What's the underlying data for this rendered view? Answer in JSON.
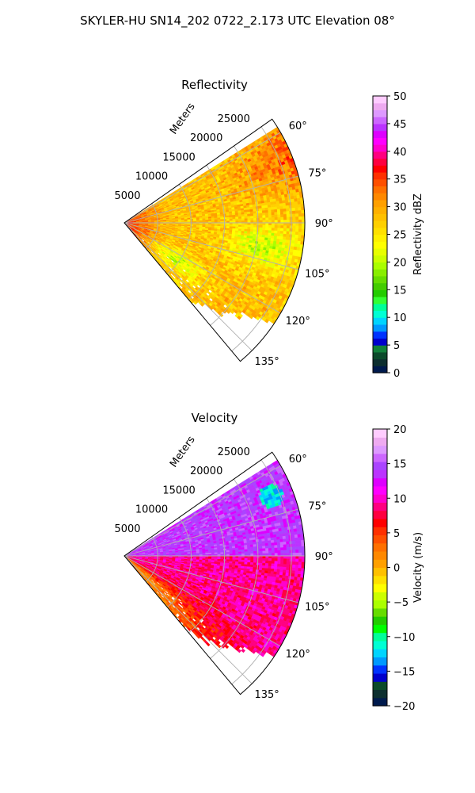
{
  "figure": {
    "suptitle": "SKYLER-HU  SN14_202  0722_2.173 UTC Elevation 08°"
  },
  "chart_data": [
    {
      "type": "heatmap",
      "projection": "polar-sector",
      "title": "Reflectivity",
      "range_label": "Meters",
      "range_ticks": [
        5000,
        10000,
        15000,
        20000,
        25000
      ],
      "range_tick_labels": [
        "5000",
        "10000",
        "15000",
        "20000",
        "25000"
      ],
      "azimuth_range_deg": [
        55,
        140
      ],
      "azimuth_ticks": [
        60,
        75,
        90,
        105,
        120,
        135
      ],
      "azimuth_tick_labels": [
        "60°",
        "75°",
        "90°",
        "105°",
        "120°",
        "135°"
      ],
      "grid": true,
      "colorbar": {
        "label": "Reflectivity dBZ",
        "vmin": 0,
        "vmax": 50,
        "ticks": [
          0,
          5,
          10,
          15,
          20,
          25,
          30,
          35,
          40,
          45,
          50
        ],
        "tick_labels": [
          "0",
          "5",
          "10",
          "15",
          "20",
          "25",
          "30",
          "35",
          "40",
          "45",
          "50"
        ],
        "colors": [
          "#001a4d",
          "#0d2f2f",
          "#0b4a2a",
          "#12803a",
          "#0000cc",
          "#0033ff",
          "#0099ff",
          "#00d4ff",
          "#00ffd4",
          "#00ff99",
          "#33ff33",
          "#22cc00",
          "#44cc00",
          "#66dd00",
          "#88ee00",
          "#aaff00",
          "#ccff00",
          "#e8ff00",
          "#ffff00",
          "#fff000",
          "#ffe000",
          "#ffd000",
          "#ffc000",
          "#ffb000",
          "#ffa000",
          "#ff8800",
          "#ff7000",
          "#ff5000",
          "#ff3000",
          "#ff0000",
          "#ff0040",
          "#ff0080",
          "#ff00cc",
          "#ff00ff",
          "#dd00ff",
          "#bb33ff",
          "#cc66ff",
          "#dd99ff",
          "#eeaaf0",
          "#ffccff"
        ]
      },
      "field_description_values": {
        "near_radar_dbz": 36,
        "background_dbz": 28,
        "band_dbz": 22,
        "outer_edge_dbz": 34
      }
    },
    {
      "type": "heatmap",
      "projection": "polar-sector",
      "title": "Velocity",
      "range_label": "Meters",
      "range_ticks": [
        5000,
        10000,
        15000,
        20000,
        25000
      ],
      "range_tick_labels": [
        "5000",
        "10000",
        "15000",
        "20000",
        "25000"
      ],
      "azimuth_range_deg": [
        55,
        140
      ],
      "azimuth_ticks": [
        60,
        75,
        90,
        105,
        120,
        135
      ],
      "azimuth_tick_labels": [
        "60°",
        "75°",
        "90°",
        "105°",
        "120°",
        "135°"
      ],
      "grid": true,
      "colorbar": {
        "label": "Velocity (m/s)",
        "vmin": -20,
        "vmax": 20,
        "ticks": [
          -20,
          -15,
          -10,
          -5,
          0,
          5,
          10,
          15,
          20
        ],
        "tick_labels": [
          "−20",
          "−15",
          "−10",
          "−5",
          "0",
          "5",
          "10",
          "15",
          "20"
        ],
        "colors": [
          "#001a4d",
          "#0d2f2f",
          "#0b4a2a",
          "#0000cc",
          "#0033ff",
          "#0099ff",
          "#00d4ff",
          "#00ffd4",
          "#00ff99",
          "#00ff00",
          "#22cc00",
          "#66dd00",
          "#aaff00",
          "#ccff00",
          "#ffff00",
          "#ffe000",
          "#ffc000",
          "#ffa000",
          "#ff8800",
          "#ff7000",
          "#ff5000",
          "#ff3000",
          "#ff0000",
          "#ff0040",
          "#ff0080",
          "#ff00cc",
          "#ff00ff",
          "#dd00ff",
          "#bb33ff",
          "#aa44ff",
          "#cc66ff",
          "#dd99ff",
          "#eeaaf0",
          "#ffccff"
        ]
      },
      "field_description_values": {
        "upper_sector_ms": 14,
        "lower_sector_ms": 9,
        "near_lower_edge_ms": 2,
        "pocket_ms": -12
      }
    }
  ]
}
